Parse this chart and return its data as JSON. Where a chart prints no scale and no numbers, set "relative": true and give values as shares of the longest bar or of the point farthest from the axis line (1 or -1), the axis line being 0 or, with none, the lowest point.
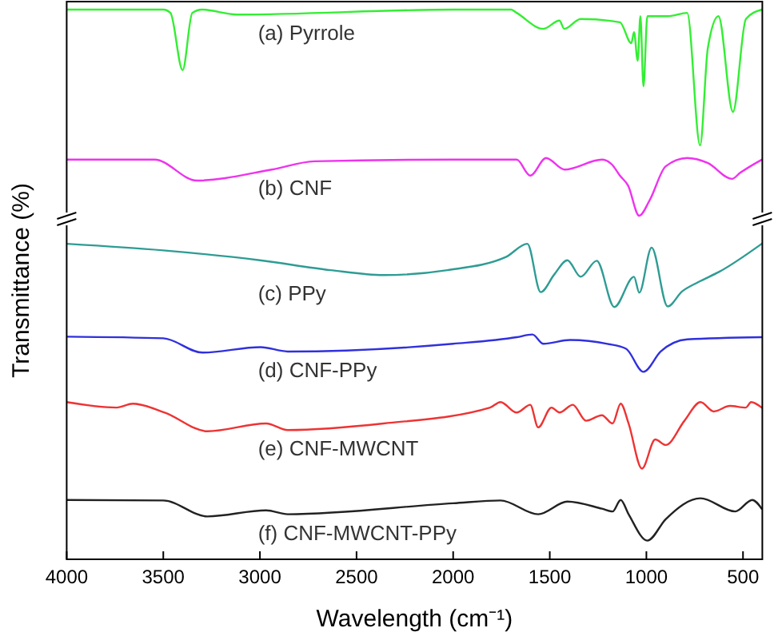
{
  "chart_data": {
    "type": "line",
    "relative": true,
    "xlabel": "Wavelength (cm⁻¹)",
    "ylabel": "Transmittance (%)",
    "xlim": [
      4000,
      400
    ],
    "xticks": [
      4000,
      3500,
      3000,
      2500,
      2000,
      1500,
      1000,
      500
    ],
    "series": [
      {
        "name": "(a) Pyrrole",
        "color": "#33ee33",
        "x": [
          4000,
          3500,
          3463,
          3400,
          3350,
          3300,
          3120,
          2000,
          1700,
          1671,
          1533,
          1450,
          1425,
          1340,
          1137,
          1078,
          1064,
          1045,
          1031,
          1015,
          995,
          887,
          789,
          722,
          682,
          627,
          552,
          485,
          403
        ],
        "values": [
          1.0,
          1.0,
          0.994,
          0.89,
          0.994,
          1.0,
          0.991,
          1.0,
          1.0,
          0.994,
          0.965,
          0.98,
          0.965,
          0.983,
          0.977,
          0.939,
          0.959,
          0.907,
          0.988,
          0.86,
          0.988,
          0.988,
          0.994,
          0.753,
          0.93,
          0.988,
          0.814,
          0.983,
          1.0
        ]
      },
      {
        "name": "(b) CNF",
        "color": "#ee33ee",
        "x": [
          4000,
          3545,
          3327,
          2939,
          2718,
          2000,
          1671,
          1601,
          1519,
          1424,
          1230,
          1178,
          1137,
          1095,
          1037,
          982,
          900,
          789,
          683,
          557,
          515,
          403
        ],
        "values": [
          0.727,
          0.727,
          0.689,
          0.709,
          0.724,
          0.727,
          0.727,
          0.698,
          0.73,
          0.709,
          0.727,
          0.718,
          0.698,
          0.68,
          0.625,
          0.654,
          0.715,
          0.73,
          0.721,
          0.692,
          0.703,
          0.727
        ]
      },
      {
        "name": "(c) PPy",
        "color": "#2e9c94",
        "x": [
          4000,
          3500,
          3000,
          2635,
          2360,
          2030,
          1727,
          1616,
          1547,
          1477,
          1409,
          1340,
          1257,
          1166,
          1064,
          1037,
          973,
          890,
          816,
          733,
          623,
          403
        ],
        "values": [
          0.574,
          0.562,
          0.544,
          0.526,
          0.517,
          0.526,
          0.55,
          0.574,
          0.486,
          0.518,
          0.544,
          0.514,
          0.543,
          0.459,
          0.514,
          0.485,
          0.567,
          0.46,
          0.487,
          0.504,
          0.523,
          0.574
        ]
      },
      {
        "name": "(d) CNF-PPy",
        "color": "#3030dd",
        "x": [
          4000,
          3500,
          3297,
          2997,
          2856,
          2000,
          1671,
          1590,
          1533,
          1395,
          1202,
          1105,
          1015,
          926,
          789,
          403
        ],
        "values": [
          0.405,
          0.402,
          0.376,
          0.386,
          0.378,
          0.392,
          0.404,
          0.409,
          0.392,
          0.399,
          0.392,
          0.383,
          0.341,
          0.378,
          0.4,
          0.404
        ]
      },
      {
        "name": "(e) CNF-MWCNT",
        "color": "#ee3333",
        "x": [
          4000,
          3741,
          3658,
          3493,
          3271,
          2968,
          2856,
          2360,
          1809,
          1755,
          1671,
          1601,
          1560,
          1491,
          1450,
          1381,
          1312,
          1230,
          1175,
          1133,
          1092,
          1023,
          954,
          900,
          803,
          720,
          651,
          568,
          485,
          458,
          403
        ],
        "values": [
          0.286,
          0.276,
          0.283,
          0.267,
          0.233,
          0.247,
          0.235,
          0.247,
          0.276,
          0.286,
          0.267,
          0.281,
          0.24,
          0.276,
          0.267,
          0.281,
          0.252,
          0.262,
          0.247,
          0.283,
          0.247,
          0.165,
          0.218,
          0.208,
          0.252,
          0.286,
          0.269,
          0.279,
          0.276,
          0.286,
          0.276
        ]
      },
      {
        "name": "(f) CNF-MWCNT-PPy",
        "color": "#222222",
        "x": [
          4000,
          3500,
          3271,
          2968,
          2856,
          2000,
          1755,
          1560,
          1409,
          1230,
          1175,
          1133,
          1092,
          995,
          900,
          720,
          540,
          452,
          403
        ],
        "values": [
          0.108,
          0.107,
          0.078,
          0.089,
          0.082,
          0.102,
          0.107,
          0.082,
          0.105,
          0.092,
          0.087,
          0.108,
          0.082,
          0.034,
          0.073,
          0.111,
          0.087,
          0.108,
          0.092
        ]
      }
    ]
  }
}
